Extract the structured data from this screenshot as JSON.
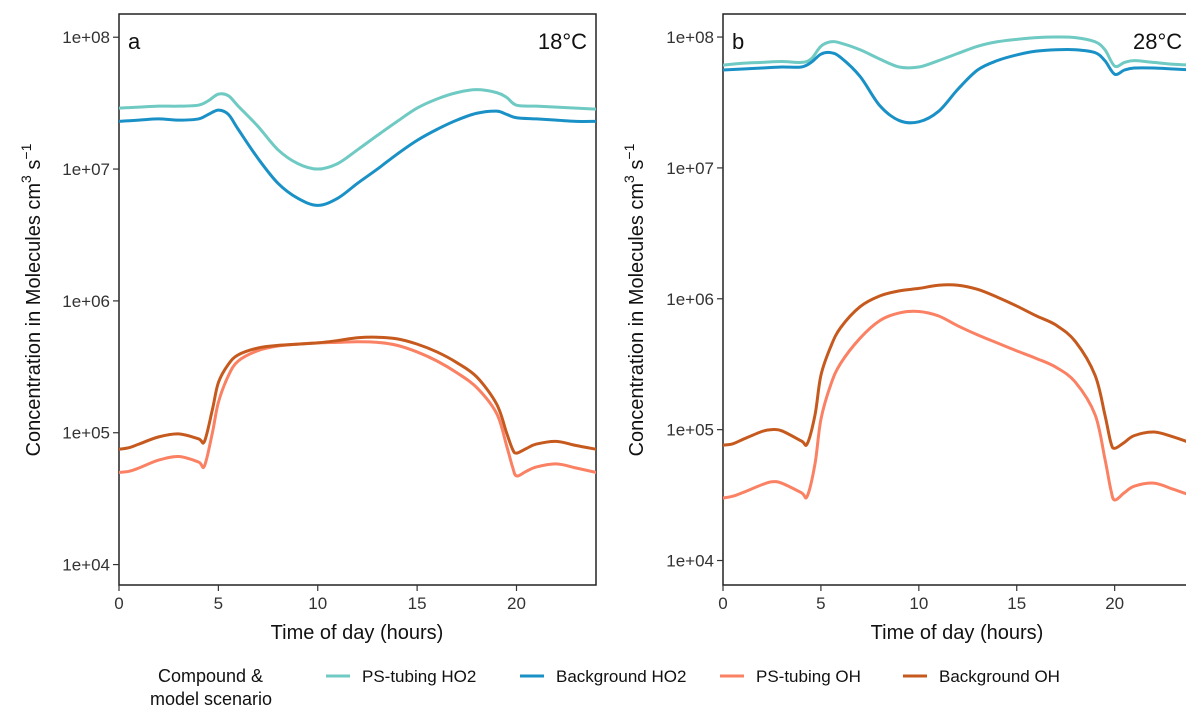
{
  "chart_data": [
    {
      "type": "line",
      "panel_label": "a",
      "temperature": "18°C",
      "xlabel": "Time of day (hours)",
      "ylabel": "Concentration in Molecules cm",
      "ylabel_sup1": "3",
      "ylabel_mid": " s",
      "ylabel_sup2": "−1",
      "xlim": [
        0,
        24
      ],
      "ylim": [
        7000,
        150000000
      ],
      "yscale": "log",
      "xticks": [
        0,
        5,
        10,
        15,
        20
      ],
      "yticks": [
        10000,
        100000,
        1000000,
        10000000,
        100000000
      ],
      "ytick_labels": [
        "1e+04",
        "1e+05",
        "1e+06",
        "1e+07",
        "1e+08"
      ],
      "grid": false,
      "series": [
        {
          "name": "PS-tubing HO2",
          "x": [
            0,
            1,
            2,
            3,
            4,
            4.5,
            5,
            5.5,
            6,
            7,
            8,
            9,
            10,
            11,
            12,
            13,
            14,
            15,
            16,
            17,
            18,
            19,
            19.5,
            20,
            21,
            22,
            23,
            24
          ],
          "y": [
            29000000,
            29500000,
            30000000,
            30000000,
            30500000,
            33000000,
            37000000,
            36000000,
            30000000,
            21000000,
            14000000,
            11000000,
            10000000,
            11000000,
            14000000,
            18000000,
            23000000,
            29000000,
            34000000,
            38000000,
            40000000,
            38000000,
            35000000,
            30500000,
            30000000,
            29500000,
            29000000,
            28500000
          ]
        },
        {
          "name": "Background HO2",
          "x": [
            0,
            1,
            2,
            3,
            4,
            4.5,
            5,
            5.5,
            6,
            7,
            8,
            9,
            10,
            11,
            12,
            13,
            14,
            15,
            16,
            17,
            18,
            19,
            19.5,
            20,
            21,
            22,
            23,
            24
          ],
          "y": [
            23000000,
            23500000,
            24000000,
            23500000,
            24000000,
            26000000,
            28000000,
            26000000,
            20000000,
            12000000,
            7800000,
            6000000,
            5300000,
            6000000,
            7800000,
            10000000,
            13000000,
            16500000,
            20000000,
            23500000,
            26500000,
            27500000,
            26000000,
            24500000,
            24000000,
            23500000,
            23000000,
            23000000
          ]
        },
        {
          "name": "PS-tubing OH",
          "x": [
            0,
            0.5,
            1,
            2,
            3,
            4,
            4.3,
            4.7,
            5,
            5.5,
            6,
            7,
            8,
            9,
            10,
            11,
            12,
            13,
            14,
            15,
            16,
            17,
            18,
            19,
            19.5,
            19.8,
            20,
            20.5,
            21,
            22,
            23,
            24
          ],
          "y": [
            50000,
            51000,
            54000,
            62000,
            66000,
            60000,
            56000,
            100000,
            170000,
            270000,
            350000,
            420000,
            455000,
            470000,
            480000,
            485000,
            490000,
            485000,
            460000,
            410000,
            350000,
            285000,
            220000,
            140000,
            80000,
            55000,
            47000,
            51000,
            55000,
            58000,
            54000,
            50000
          ]
        },
        {
          "name": "Background OH",
          "x": [
            0,
            0.5,
            1,
            2,
            3,
            4,
            4.3,
            4.7,
            5,
            5.5,
            6,
            7,
            8,
            9,
            10,
            11,
            12,
            13,
            14,
            15,
            16,
            17,
            18,
            19,
            19.5,
            19.8,
            20,
            20.5,
            21,
            22,
            23,
            24
          ],
          "y": [
            75000,
            77000,
            82000,
            93000,
            98000,
            90000,
            86000,
            150000,
            240000,
            330000,
            390000,
            440000,
            460000,
            470000,
            480000,
            500000,
            525000,
            530000,
            515000,
            470000,
            410000,
            340000,
            265000,
            165000,
            100000,
            75000,
            70000,
            76000,
            82000,
            86000,
            80000,
            75000
          ]
        }
      ]
    },
    {
      "type": "line",
      "panel_label": "b",
      "temperature": "28°C",
      "xlabel": "Time of day (hours)",
      "ylabel": "Concentration in Molecules cm",
      "ylabel_sup1": "3",
      "ylabel_mid": " s",
      "ylabel_sup2": "−1",
      "xlim": [
        0,
        24
      ],
      "ylim": [
        6500,
        150000000
      ],
      "yscale": "log",
      "xticks": [
        0,
        5,
        10,
        15,
        20
      ],
      "yticks": [
        10000,
        100000,
        1000000,
        10000000,
        100000000
      ],
      "ytick_labels": [
        "1e+04",
        "1e+05",
        "1e+06",
        "1e+07",
        "1e+08"
      ],
      "grid": false,
      "series": [
        {
          "name": "PS-tubing HO2",
          "x": [
            0,
            1,
            2,
            3,
            4,
            4.5,
            5,
            5.5,
            6,
            7,
            8,
            9,
            10,
            11,
            12,
            13,
            14,
            15,
            16,
            17,
            18,
            19,
            19.5,
            20,
            20.5,
            21,
            22,
            23,
            24
          ],
          "y": [
            61000000,
            63000000,
            64000000,
            65000000,
            64000000,
            68000000,
            85000000,
            92000000,
            90000000,
            80000000,
            68000000,
            59000000,
            59000000,
            66000000,
            75000000,
            85000000,
            92000000,
            96000000,
            99000000,
            100000000,
            99000000,
            92000000,
            80000000,
            60000000,
            64000000,
            66000000,
            64000000,
            62000000,
            61000000
          ]
        },
        {
          "name": "Background HO2",
          "x": [
            0,
            1,
            2,
            3,
            4,
            4.5,
            5,
            5.5,
            6,
            7,
            8,
            9,
            10,
            11,
            12,
            13,
            14,
            15,
            16,
            17,
            18,
            19,
            19.5,
            20,
            20.5,
            21,
            22,
            23,
            24
          ],
          "y": [
            56000000,
            57000000,
            58000000,
            59000000,
            59000000,
            64000000,
            74000000,
            76000000,
            70000000,
            50000000,
            30000000,
            23000000,
            22500000,
            27000000,
            40000000,
            56000000,
            66000000,
            73000000,
            78000000,
            80000000,
            80000000,
            76000000,
            66000000,
            52000000,
            56000000,
            58000000,
            58000000,
            57000000,
            56000000
          ]
        },
        {
          "name": "PS-tubing OH",
          "x": [
            0,
            0.5,
            1,
            2,
            2.5,
            3,
            4,
            4.3,
            4.7,
            5,
            5.5,
            6,
            7,
            8,
            9,
            10,
            11,
            12,
            13,
            14,
            15,
            16,
            17,
            18,
            19,
            19.5,
            19.8,
            20,
            20.5,
            21,
            22,
            23,
            24
          ],
          "y": [
            30000,
            31000,
            33000,
            38000,
            40000,
            39000,
            33000,
            31000,
            55000,
            120000,
            220000,
            320000,
            500000,
            680000,
            780000,
            800000,
            740000,
            620000,
            530000,
            460000,
            400000,
            350000,
            300000,
            230000,
            130000,
            60000,
            35000,
            29000,
            33000,
            37000,
            39000,
            35000,
            31000
          ]
        },
        {
          "name": "Background OH",
          "x": [
            0,
            0.5,
            1,
            2,
            2.5,
            3,
            4,
            4.3,
            4.7,
            5,
            5.5,
            6,
            7,
            8,
            9,
            10,
            11,
            12,
            13,
            14,
            15,
            16,
            17,
            18,
            19,
            19.5,
            19.8,
            20,
            20.5,
            21,
            22,
            23,
            24
          ],
          "y": [
            76000,
            78000,
            84000,
            97000,
            100000,
            98000,
            82000,
            78000,
            130000,
            260000,
            430000,
            600000,
            870000,
            1050000,
            1150000,
            1200000,
            1270000,
            1270000,
            1180000,
            1030000,
            880000,
            740000,
            630000,
            470000,
            260000,
            130000,
            80000,
            72000,
            80000,
            90000,
            96000,
            88000,
            78000
          ]
        }
      ]
    }
  ],
  "legend": {
    "title_line1": "Compound &",
    "title_line2": "model scenario",
    "items": [
      {
        "label": "PS-tubing HO2",
        "color": "#6fcac3"
      },
      {
        "label": "Background HO2",
        "color": "#1a91c6"
      },
      {
        "label": "PS-tubing OH",
        "color": "#fa8163"
      },
      {
        "label": "Background OH",
        "color": "#c65a1e"
      }
    ]
  },
  "colors": {
    "PS-tubing HO2": "#6fcac3",
    "Background HO2": "#1a91c6",
    "PS-tubing OH": "#fa8163",
    "Background OH": "#c65a1e"
  }
}
